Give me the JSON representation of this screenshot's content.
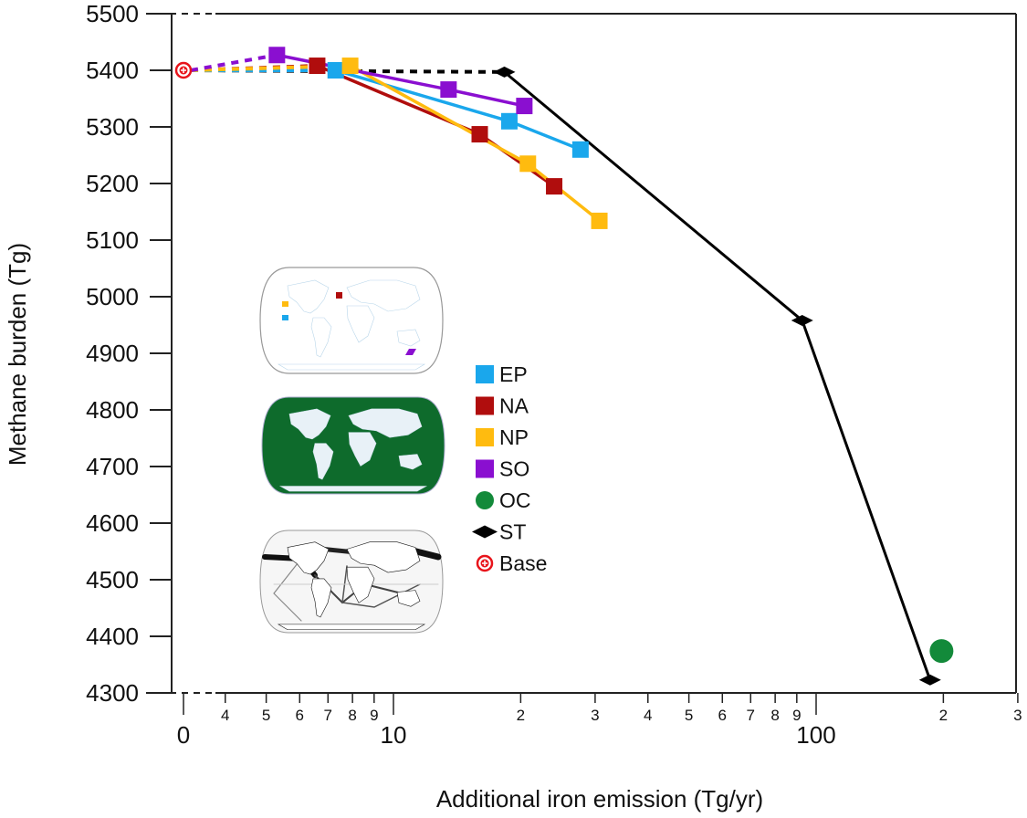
{
  "chart_data": {
    "type": "line",
    "title": "",
    "xlabel": "Additional iron emission (Tg/yr)",
    "ylabel": "Methane burden (Tg)",
    "xscale": "log (broken axis with 0 at origin)",
    "xlim": [
      0,
      300
    ],
    "ylim": [
      4300,
      5500
    ],
    "grid": false,
    "legend_position": "center-left (inside plot)",
    "yticks": [
      4300,
      4400,
      4500,
      4600,
      4700,
      4800,
      4900,
      5000,
      5100,
      5200,
      5300,
      5400,
      5500
    ],
    "xtick_labels_major": [
      "0",
      "10",
      "100"
    ],
    "xtick_labels_minor": [
      "4",
      "5",
      "6",
      "7",
      "8",
      "9",
      "2",
      "3",
      "4",
      "5",
      "6",
      "7",
      "8",
      "9",
      "2",
      "3"
    ],
    "base": {
      "name": "Base",
      "x": 0,
      "y": 5400,
      "color": "#e8141b",
      "marker": "circle-plus"
    },
    "series": [
      {
        "name": "EP",
        "color": "#1aa7ec",
        "marker": "square",
        "x": [
          7.3,
          18.8,
          27.7
        ],
        "y": [
          5400,
          5310,
          5260
        ]
      },
      {
        "name": "NA",
        "color": "#b00d0d",
        "marker": "square",
        "x": [
          6.6,
          16,
          24
        ],
        "y": [
          5408,
          5287,
          5195
        ]
      },
      {
        "name": "NP",
        "color": "#ffbb0f",
        "marker": "square",
        "x": [
          7.9,
          20.8,
          30.7
        ],
        "y": [
          5408,
          5235,
          5134
        ]
      },
      {
        "name": "SO",
        "color": "#8a0fd0",
        "marker": "square",
        "x": [
          5.3,
          13.5,
          20.4
        ],
        "y": [
          5427,
          5366,
          5337
        ]
      },
      {
        "name": "OC",
        "color": "#138a3a",
        "marker": "circle",
        "x": [
          198
        ],
        "y": [
          4374
        ]
      },
      {
        "name": "ST",
        "color": "#000000",
        "marker": "diamond",
        "x": [
          18.3,
          92.7,
          186
        ],
        "y": [
          5397,
          4958,
          4323
        ]
      }
    ],
    "annotations": [
      "Dashed lines connect Base (0) to each series' first point",
      "Inset maps: regional fertilization boxes (EP, NA, NP, SO); full ocean (OC, green); shipping tracks (ST, grayscale)"
    ]
  },
  "legend": {
    "items": [
      {
        "label": "EP"
      },
      {
        "label": "NA"
      },
      {
        "label": "NP"
      },
      {
        "label": "SO"
      },
      {
        "label": "OC"
      },
      {
        "label": "ST"
      },
      {
        "label": "Base"
      }
    ]
  },
  "insets": {
    "map_regions": {
      "label": "regional-boxes-map"
    },
    "map_ocean": {
      "label": "ocean-map"
    },
    "map_shipping": {
      "label": "shipping-tracks-map"
    }
  }
}
